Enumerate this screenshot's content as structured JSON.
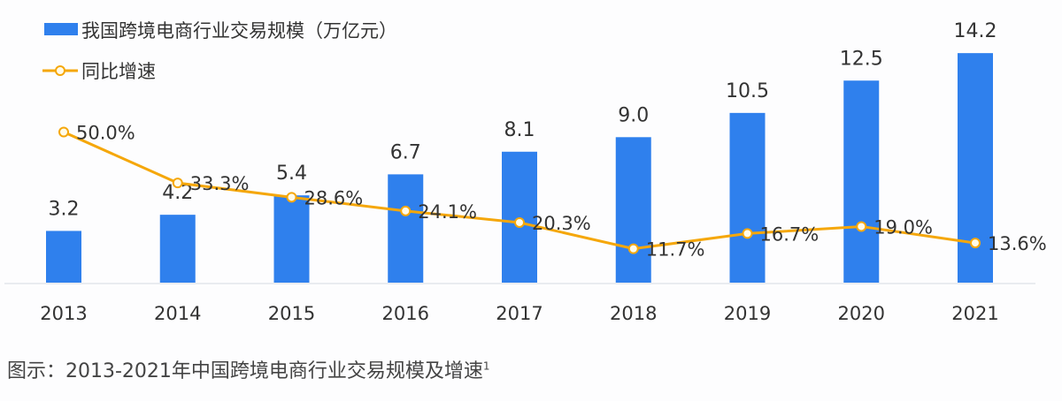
{
  "chart_data": {
    "type": "bar+line",
    "categories": [
      "2013",
      "2014",
      "2015",
      "2016",
      "2017",
      "2018",
      "2019",
      "2020",
      "2021"
    ],
    "series": [
      {
        "name": "我国跨境电商行业交易规模（万亿元）",
        "type": "bar",
        "color": "#2f80ed",
        "values": [
          3.2,
          4.2,
          5.4,
          6.7,
          8.1,
          9.0,
          10.5,
          12.5,
          14.2
        ],
        "labels": [
          "3.2",
          "4.2",
          "5.4",
          "6.7",
          "8.1",
          "9.0",
          "10.5",
          "12.5",
          "14.2"
        ]
      },
      {
        "name": "同比增速",
        "type": "line",
        "color": "#f5a70a",
        "unit": "%",
        "values": [
          50.0,
          33.3,
          28.6,
          24.1,
          20.3,
          11.7,
          16.7,
          19.0,
          13.6
        ],
        "labels": [
          "50.0%",
          "33.3%",
          "28.6%",
          "24.1%",
          "20.3%",
          "11.7%",
          "16.7%",
          "19.0%",
          "13.6%"
        ]
      }
    ],
    "legend_position": "top-left",
    "grid": false
  },
  "caption": {
    "text": "图示：2013-2021年中国跨境电商行业交易规模及增速",
    "footnote": "1"
  }
}
